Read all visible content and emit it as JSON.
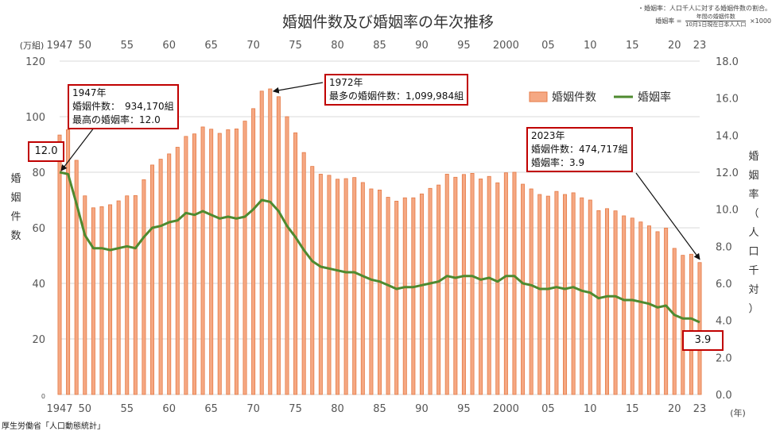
{
  "chart_data": {
    "type": "bar+line",
    "title": "婚姻件数及び婚姻率の年次推移",
    "note": {
      "line1": "・婚姻率：人口千人に対する婚姻件数の割合。",
      "formula_lhs": "婚姻率 =",
      "formula_num": "年間の婚姻件数",
      "formula_den": "10月1日現在日本人人口",
      "formula_rhs": "×1000"
    },
    "left_axis": {
      "unit": "(万組)",
      "label": [
        "婚",
        "姻",
        "件",
        "数"
      ],
      "range": [
        0,
        120
      ],
      "ticks": [
        "0",
        "20",
        "40",
        "60",
        "80",
        "100",
        "120"
      ]
    },
    "right_axis": {
      "label": [
        "婚",
        "姻",
        "率",
        "（",
        "人",
        "口",
        "千",
        "対",
        "）"
      ],
      "range": [
        0,
        18
      ],
      "ticks": [
        "0.0",
        "2.0",
        "4.0",
        "6.0",
        "8.0",
        "10.0",
        "12.0",
        "14.0",
        "16.0",
        "18.0"
      ]
    },
    "x_unit": "(年)",
    "x_tick_labels": [
      {
        "year": 1947,
        "label": "1947"
      },
      {
        "year": 1950,
        "label": "50"
      },
      {
        "year": 1955,
        "label": "55"
      },
      {
        "year": 1960,
        "label": "60"
      },
      {
        "year": 1965,
        "label": "65"
      },
      {
        "year": 1970,
        "label": "70"
      },
      {
        "year": 1975,
        "label": "75"
      },
      {
        "year": 1980,
        "label": "80"
      },
      {
        "year": 1985,
        "label": "85"
      },
      {
        "year": 1990,
        "label": "90"
      },
      {
        "year": 1995,
        "label": "95"
      },
      {
        "year": 2000,
        "label": "2000"
      },
      {
        "year": 2005,
        "label": "05"
      },
      {
        "year": 2010,
        "label": "10"
      },
      {
        "year": 2015,
        "label": "15"
      },
      {
        "year": 2020,
        "label": "20"
      },
      {
        "year": 2023,
        "label": "23"
      }
    ],
    "legend": {
      "bar": "婚姻件数",
      "line": "婚姻率"
    },
    "colors": {
      "bar_fill": "#f5a883",
      "bar_stroke": "#e57a45",
      "line": "#4e8a2f",
      "callout": "#c00000",
      "grid": "#d9d9d9"
    },
    "years": [
      1947,
      1948,
      1949,
      1950,
      1951,
      1952,
      1953,
      1954,
      1955,
      1956,
      1957,
      1958,
      1959,
      1960,
      1961,
      1962,
      1963,
      1964,
      1965,
      1966,
      1967,
      1968,
      1969,
      1970,
      1971,
      1972,
      1973,
      1974,
      1975,
      1976,
      1977,
      1978,
      1979,
      1980,
      1981,
      1982,
      1983,
      1984,
      1985,
      1986,
      1987,
      1988,
      1989,
      1990,
      1991,
      1992,
      1993,
      1994,
      1995,
      1996,
      1997,
      1998,
      1999,
      2000,
      2001,
      2002,
      2003,
      2004,
      2005,
      2006,
      2007,
      2008,
      2009,
      2010,
      2011,
      2012,
      2013,
      2014,
      2015,
      2016,
      2017,
      2018,
      2019,
      2020,
      2021,
      2022,
      2023
    ],
    "marriages_man": [
      93.4,
      95.3,
      84.3,
      71.5,
      67.2,
      67.6,
      68.3,
      69.7,
      71.5,
      71.6,
      77.3,
      82.6,
      84.7,
      86.6,
      89.0,
      92.9,
      93.8,
      96.3,
      95.5,
      94.0,
      95.3,
      95.6,
      98.4,
      102.9,
      109.2,
      110.0,
      107.2,
      100.0,
      94.2,
      87.1,
      82.1,
      79.3,
      78.9,
      77.5,
      77.7,
      78.1,
      76.3,
      74.0,
      73.6,
      71.0,
      69.6,
      70.8,
      70.8,
      72.2,
      74.2,
      75.4,
      79.3,
      78.2,
      79.2,
      79.6,
      77.6,
      78.5,
      76.2,
      79.8,
      80.0,
      75.7,
      74.0,
      72.0,
      71.4,
      73.1,
      72.0,
      72.6,
      70.8,
      70.0,
      66.2,
      66.9,
      66.1,
      64.3,
      63.5,
      62.1,
      60.7,
      58.6,
      59.9,
      52.6,
      50.1,
      50.5,
      47.5
    ],
    "rate": [
      12.0,
      11.9,
      10.3,
      8.6,
      7.9,
      7.9,
      7.8,
      7.9,
      8.0,
      7.9,
      8.5,
      9.0,
      9.1,
      9.3,
      9.4,
      9.8,
      9.7,
      9.9,
      9.7,
      9.5,
      9.6,
      9.5,
      9.6,
      10.0,
      10.5,
      10.4,
      9.9,
      9.1,
      8.5,
      7.8,
      7.2,
      6.9,
      6.8,
      6.7,
      6.6,
      6.6,
      6.4,
      6.2,
      6.1,
      5.9,
      5.7,
      5.8,
      5.8,
      5.9,
      6.0,
      6.1,
      6.4,
      6.3,
      6.4,
      6.4,
      6.2,
      6.3,
      6.1,
      6.4,
      6.4,
      6.0,
      5.9,
      5.7,
      5.7,
      5.8,
      5.7,
      5.8,
      5.6,
      5.5,
      5.2,
      5.3,
      5.3,
      5.1,
      5.1,
      5.0,
      4.9,
      4.7,
      4.8,
      4.3,
      4.1,
      4.1,
      3.9
    ]
  },
  "callouts": {
    "y1947": {
      "year": "1947年",
      "count": "婚姻件数：　934,170組",
      "rate": "最高の婚姻率：12.0"
    },
    "y1972": {
      "year": "1972年",
      "count": "最多の婚姻件数：1,099,984組"
    },
    "y2023": {
      "year": "2023年",
      "count": "婚姻件数：474,717組",
      "rate": "婚姻率：3.9"
    },
    "badge_first": "12.0",
    "badge_last": "3.9"
  },
  "source": "厚生労働省「人口動態統計」"
}
